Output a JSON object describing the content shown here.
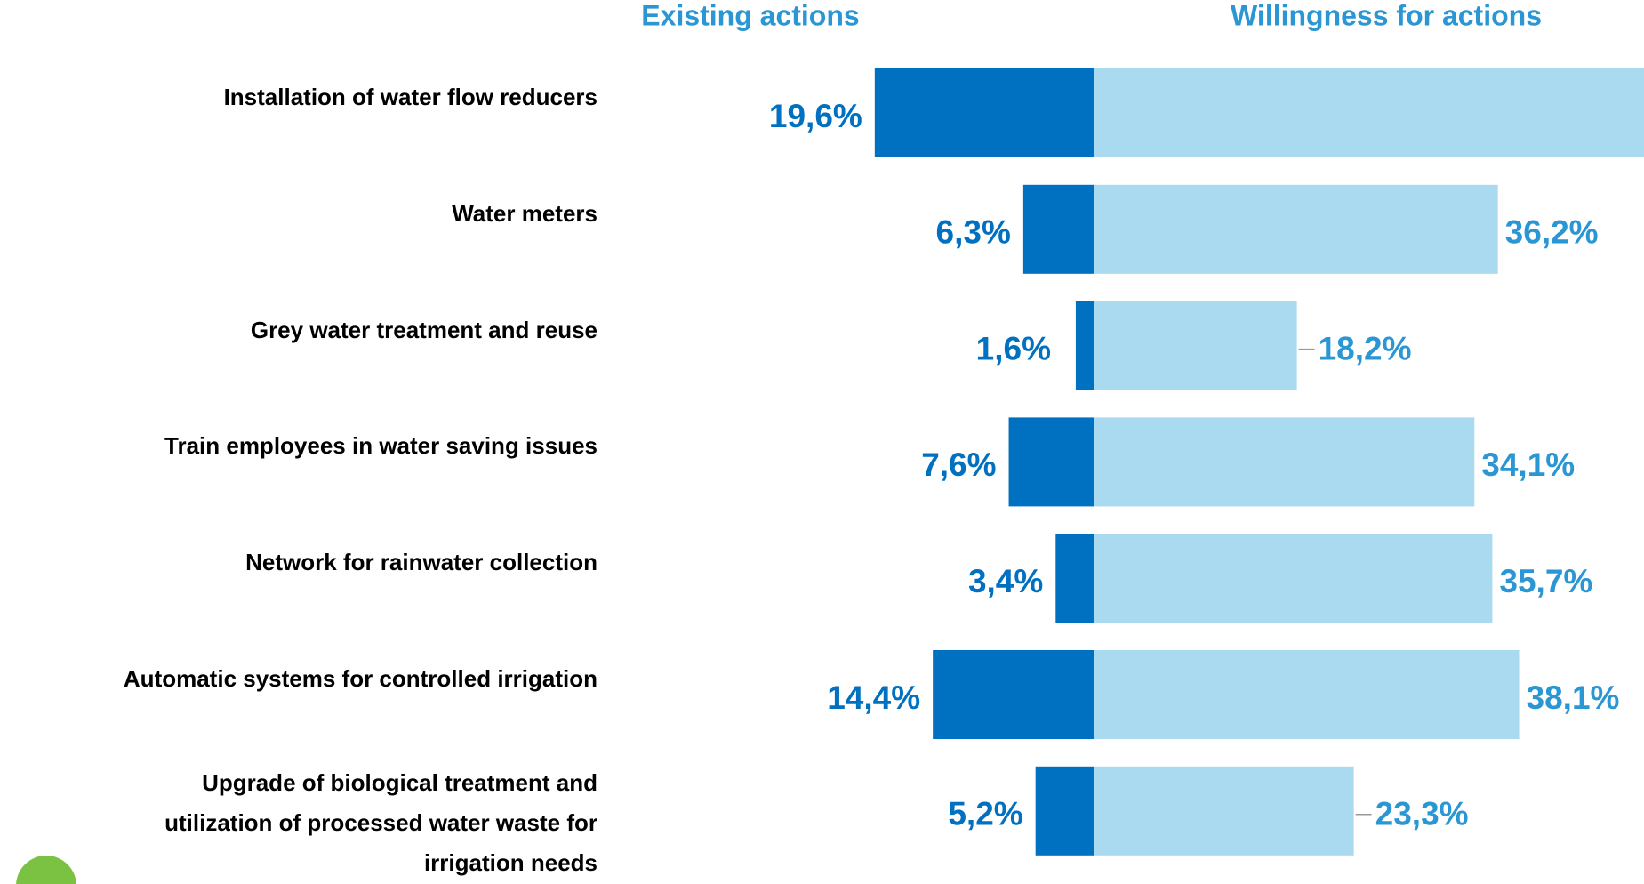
{
  "chart_data": {
    "type": "diverging-bar",
    "categories": [
      "Installation of water flow reducers",
      "Water meters",
      "Grey water treatment and reuse",
      "Train employees in water saving issues",
      "Network for rainwater collection",
      "Automatic systems for controlled irrigation",
      "Upgrade of biological treatment and\nutilization of processed water waste for\nirrigation needs"
    ],
    "series": [
      {
        "name": "Existing actions",
        "color": "#0070c0",
        "label_color": "#0070c0",
        "side": "left",
        "values": [
          19.6,
          6.3,
          1.6,
          7.6,
          3.4,
          14.4,
          5.2
        ],
        "value_labels": [
          "19,6%",
          "6,3%",
          "1,6%",
          "7,6%",
          "3,4%",
          "14,4%",
          "5,2%"
        ]
      },
      {
        "name": "Willingness for actions",
        "color": "#a9daf0",
        "label_color": "#2a96d4",
        "side": "right",
        "values": [
          50,
          36.2,
          18.2,
          34.1,
          35.7,
          38.1,
          23.3
        ],
        "value_labels": [
          null,
          "36,2%",
          "18,2%",
          "34,1%",
          "35,7%",
          "38,1%",
          "23,3%"
        ]
      }
    ]
  }
}
